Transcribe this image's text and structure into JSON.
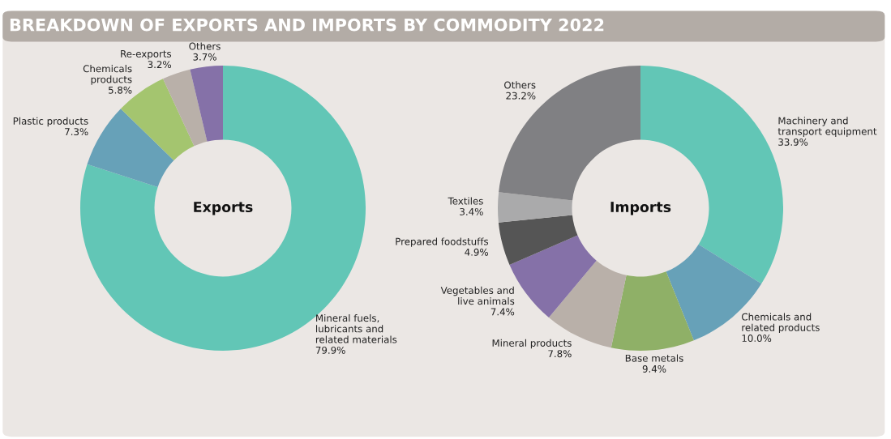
{
  "chart_data": [
    {
      "type": "donut",
      "title": "Exports",
      "annotations": [
        "BREAKDOWN OF EXPORTS AND IMPORTS BY COMMODITY 2022"
      ],
      "categories": [
        "Mineral fuels,\nlubricants and\nrelated materials",
        "Plastic products",
        "Chemicals\nproducts",
        "Re-exports",
        "Others"
      ],
      "values": [
        79.9,
        7.3,
        5.8,
        3.2,
        3.7
      ],
      "value_labels": [
        "79.9%",
        "7.3%",
        "5.8%",
        "3.2%",
        "3.7%"
      ],
      "colors": [
        "#62c6b6",
        "#67a1b8",
        "#a4c56f",
        "#b9b0a9",
        "#8571a8"
      ],
      "legend": false
    },
    {
      "type": "donut",
      "title": "Imports",
      "categories": [
        "Machinery and\ntransport equipment",
        "Chemicals and\nrelated products",
        "Base metals",
        "Mineral products",
        "Vegetables and\nlive animals",
        "Prepared foodstuffs",
        "Textiles",
        "Others"
      ],
      "values": [
        33.9,
        10.0,
        9.4,
        7.8,
        7.4,
        4.9,
        3.4,
        23.2
      ],
      "value_labels": [
        "33.9%",
        "10.0%",
        "9.4%",
        "7.8%",
        "7.4%",
        "4.9%",
        "3.4%",
        "23.2%"
      ],
      "colors": [
        "#62c6b6",
        "#67a1b8",
        "#8fb067",
        "#b9b0a9",
        "#8571a8",
        "#555555",
        "#aaaaab",
        "#808083"
      ],
      "legend": false
    }
  ]
}
